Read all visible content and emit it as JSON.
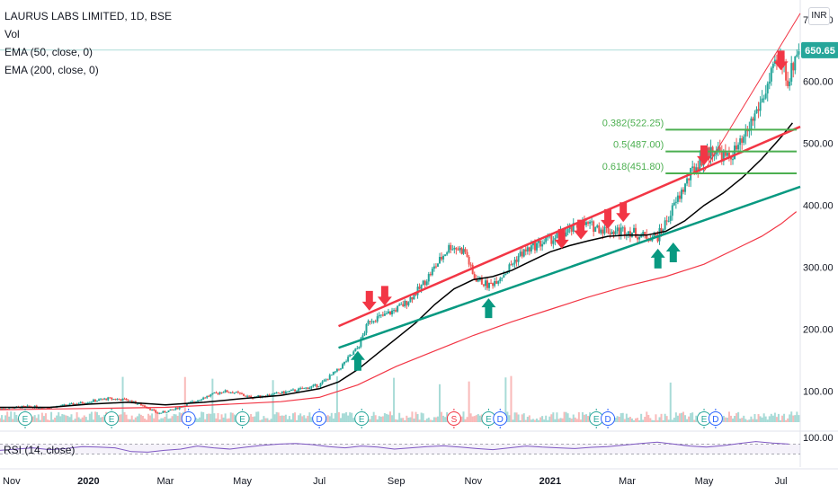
{
  "legend": {
    "title": "LAURUS LABS LIMITED, 1D, BSE",
    "vol": "Vol",
    "ema50": "EMA (50, close, 0)",
    "ema200": "EMA (200, close, 0)"
  },
  "currency": "INR",
  "rsi_label": "RSI (14, close)",
  "colors": {
    "up": "#26a69a",
    "down": "#ef5350",
    "red_line": "#f23645",
    "teal_line": "#089981",
    "ema50": "#000000",
    "ema200": "#f23645",
    "fib": "#4caf50",
    "rsi": "#7e57c2",
    "last_price": "#26a69a"
  },
  "chart_data": [
    {
      "type": "line",
      "title": "LAURUS LABS LIMITED, 1D, BSE",
      "ylim": [
        50,
        720
      ],
      "y_ticks": [
        "700.00",
        "600.00",
        "500.00",
        "400.00",
        "300.00",
        "200.00",
        "100.00"
      ],
      "y_tick_values": [
        700,
        600,
        500,
        400,
        300,
        200,
        100
      ],
      "x_ticks": [
        "Nov",
        "2020",
        "Mar",
        "May",
        "Jul",
        "Sep",
        "Nov",
        "2021",
        "Mar",
        "May",
        "Jul"
      ],
      "x_tick_months": [
        0,
        2,
        4,
        6,
        8,
        10,
        12,
        14,
        16,
        18,
        20
      ],
      "xlim_months": [
        -0.3,
        20.5
      ],
      "last_price": {
        "value": 650.65,
        "label": "650.65"
      },
      "price_path": [
        [
          -0.3,
          72
        ],
        [
          0.4,
          75
        ],
        [
          1.0,
          74
        ],
        [
          1.5,
          78
        ],
        [
          2.0,
          83
        ],
        [
          2.5,
          88
        ],
        [
          3.0,
          86
        ],
        [
          3.5,
          75
        ],
        [
          3.8,
          64
        ],
        [
          4.2,
          70
        ],
        [
          4.6,
          80
        ],
        [
          5.0,
          90
        ],
        [
          5.5,
          100
        ],
        [
          5.8,
          98
        ],
        [
          6.2,
          90
        ],
        [
          6.6,
          93
        ],
        [
          7.0,
          97
        ],
        [
          7.5,
          103
        ],
        [
          8.0,
          110
        ],
        [
          8.5,
          135
        ],
        [
          9.0,
          170
        ],
        [
          9.3,
          215
        ],
        [
          9.7,
          222
        ],
        [
          10.2,
          240
        ],
        [
          10.6,
          265
        ],
        [
          11.0,
          300
        ],
        [
          11.4,
          335
        ],
        [
          11.8,
          325
        ],
        [
          12.0,
          285
        ],
        [
          12.4,
          270
        ],
        [
          12.8,
          290
        ],
        [
          13.2,
          320
        ],
        [
          13.6,
          335
        ],
        [
          14.0,
          345
        ],
        [
          14.4,
          355
        ],
        [
          14.8,
          370
        ],
        [
          15.2,
          365
        ],
        [
          15.6,
          358
        ],
        [
          16.0,
          360
        ],
        [
          16.4,
          350
        ],
        [
          16.8,
          350
        ],
        [
          17.0,
          372
        ],
        [
          17.4,
          420
        ],
        [
          17.7,
          455
        ],
        [
          18.0,
          480
        ],
        [
          18.3,
          492
        ],
        [
          18.6,
          475
        ],
        [
          19.0,
          500
        ],
        [
          19.2,
          530
        ],
        [
          19.5,
          570
        ],
        [
          19.8,
          615
        ],
        [
          20.0,
          640
        ],
        [
          20.2,
          600
        ],
        [
          20.4,
          650
        ]
      ],
      "candle_days_per_month": 21,
      "series": [
        {
          "name": "EMA (50, close, 0)",
          "color": "#000000",
          "points": [
            [
              -0.3,
              74
            ],
            [
              1.0,
              74
            ],
            [
              2.0,
              79
            ],
            [
              3.0,
              82
            ],
            [
              4.0,
              78
            ],
            [
              5.0,
              82
            ],
            [
              6.0,
              88
            ],
            [
              7.0,
              93
            ],
            [
              8.0,
              104
            ],
            [
              8.5,
              115
            ],
            [
              9.0,
              135
            ],
            [
              9.5,
              160
            ],
            [
              10.0,
              185
            ],
            [
              10.5,
              210
            ],
            [
              11.0,
              240
            ],
            [
              11.5,
              265
            ],
            [
              12.0,
              280
            ],
            [
              12.5,
              285
            ],
            [
              13.0,
              295
            ],
            [
              13.5,
              310
            ],
            [
              14.0,
              325
            ],
            [
              14.5,
              335
            ],
            [
              15.0,
              343
            ],
            [
              15.5,
              350
            ],
            [
              16.0,
              352
            ],
            [
              16.5,
              352
            ],
            [
              17.0,
              358
            ],
            [
              17.5,
              375
            ],
            [
              18.0,
              400
            ],
            [
              18.5,
              420
            ],
            [
              19.0,
              445
            ],
            [
              19.5,
              475
            ],
            [
              20.0,
              510
            ],
            [
              20.3,
              533
            ]
          ]
        },
        {
          "name": "EMA (200, close, 0)",
          "color": "#f23645",
          "points": [
            [
              -0.3,
              70
            ],
            [
              2.0,
              72
            ],
            [
              4.0,
              74
            ],
            [
              6.0,
              80
            ],
            [
              7.0,
              83
            ],
            [
              8.0,
              90
            ],
            [
              9.0,
              110
            ],
            [
              10.0,
              140
            ],
            [
              11.0,
              165
            ],
            [
              12.0,
              190
            ],
            [
              13.0,
              212
            ],
            [
              14.0,
              232
            ],
            [
              15.0,
              252
            ],
            [
              16.0,
              270
            ],
            [
              17.0,
              285
            ],
            [
              18.0,
              305
            ],
            [
              19.0,
              335
            ],
            [
              19.5,
              350
            ],
            [
              20.0,
              370
            ],
            [
              20.4,
              390
            ]
          ]
        }
      ],
      "trendlines": [
        {
          "name": "red-resistance-line",
          "from": [
            8.5,
            205
          ],
          "to": [
            20.5,
            527
          ]
        },
        {
          "name": "teal-support-line",
          "from": [
            8.5,
            170
          ],
          "to": [
            20.5,
            430
          ]
        },
        {
          "name": "thin-red-steep-line",
          "from": [
            18.0,
            455
          ],
          "to": [
            20.5,
            710
          ]
        }
      ],
      "fib_levels": [
        {
          "label": "0.382(522.25)",
          "value": 522.25
        },
        {
          "label": "0.5(487.00)",
          "value": 487.0
        },
        {
          "label": "0.618(451.80)",
          "value": 451.8
        }
      ],
      "down_arrows": [
        [
          9.3,
          230
        ],
        [
          9.7,
          238
        ],
        [
          14.3,
          330
        ],
        [
          14.8,
          345
        ],
        [
          15.5,
          362
        ],
        [
          15.9,
          373
        ],
        [
          18.0,
          465
        ],
        [
          20.0,
          618
        ]
      ],
      "up_arrows": [
        [
          9.0,
          165
        ],
        [
          12.4,
          250
        ],
        [
          16.8,
          330
        ],
        [
          17.2,
          340
        ]
      ],
      "event_markers": [
        {
          "month": -0.3,
          "label": "E"
        },
        {
          "month": 2.6,
          "label": "E"
        },
        {
          "month": 4.6,
          "label": "D"
        },
        {
          "month": 6.0,
          "label": "E"
        },
        {
          "month": 8.0,
          "label": "D"
        },
        {
          "month": 9.1,
          "label": "E"
        },
        {
          "month": 11.5,
          "label": "S"
        },
        {
          "month": 12.4,
          "label": "E"
        },
        {
          "month": 12.7,
          "label": "D"
        },
        {
          "month": 15.2,
          "label": "E"
        },
        {
          "month": 15.5,
          "label": "D"
        },
        {
          "month": 18.0,
          "label": "E"
        },
        {
          "month": 18.3,
          "label": "D"
        }
      ],
      "rsi": {
        "name": "RSI (14, close)",
        "tick": "100.00",
        "band": [
          30,
          70
        ],
        "values": [
          45,
          50,
          55,
          48,
          52,
          60,
          58,
          55,
          40,
          38,
          45,
          50,
          62,
          55,
          50,
          58,
          65,
          70,
          72,
          68,
          60,
          55,
          62,
          58,
          50,
          55,
          60,
          63,
          58,
          52,
          48,
          55,
          62,
          58,
          55,
          52,
          57,
          60,
          66,
          72,
          78,
          70,
          62,
          58,
          64,
          72,
          80,
          74,
          70
        ]
      }
    }
  ]
}
